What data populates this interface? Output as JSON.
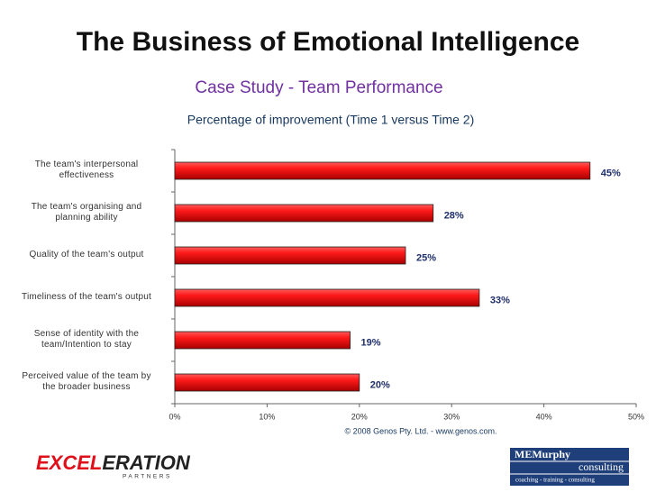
{
  "header": {
    "title": "The Business of Emotional Intelligence",
    "subtitle": "Case Study - Team Performance"
  },
  "chart_data": {
    "type": "bar",
    "orientation": "horizontal",
    "title": "Percentage of improvement (Time 1 versus Time 2)",
    "categories": [
      "The team's interpersonal effectiveness",
      "The team's organising and planning ability",
      "Quality of the team's output",
      "Timeliness of the team's output",
      "Sense of identity with the team/Intention to stay",
      "Perceived value of the team by the broader business"
    ],
    "values": [
      45,
      28,
      25,
      33,
      19,
      20
    ],
    "value_labels": [
      "45%",
      "28%",
      "25%",
      "33%",
      "19%",
      "20%"
    ],
    "color": "#e01010",
    "xlim": [
      0,
      50
    ],
    "xticks": [
      {
        "value": 0,
        "label": "0%"
      },
      {
        "value": 10,
        "label": "10%"
      },
      {
        "value": 20,
        "label": "20%"
      },
      {
        "value": 30,
        "label": "30%"
      },
      {
        "value": 40,
        "label": "40%"
      },
      {
        "value": 50,
        "label": "50%"
      }
    ],
    "source": "© 2008 Genos Pty. Ltd. - www.genos.com."
  },
  "footer": {
    "left_logo": [
      "EXCEL",
      "ERATION"
    ],
    "left_logo_sub": "PARTNERS",
    "right_logo": "MEMurphy",
    "right_logo_word": "consulting",
    "right_logo_tagline": "coaching - training - consulting"
  }
}
